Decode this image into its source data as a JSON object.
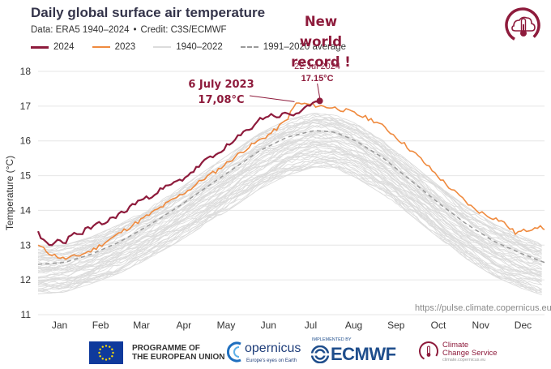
{
  "header": {
    "title": "Daily global surface air temperature",
    "subtitle_data": "Data: ERA5 1940–2024",
    "subtitle_sep": "•",
    "subtitle_credit": "Credit: C3S/ECMWF"
  },
  "legend": [
    {
      "label": "2024",
      "color": "#8e1b3c",
      "style": "solid"
    },
    {
      "label": "2023",
      "color": "#ef8a3e",
      "style": "solid"
    },
    {
      "label": "1940–2022",
      "color": "#dcdcdc",
      "style": "solid"
    },
    {
      "label": "1991–2020 average",
      "color": "#9a9a9a",
      "style": "dashed"
    }
  ],
  "callouts": {
    "record_line1": "New world",
    "record_line2": "record !",
    "july2024_date": "22 Jul 2024",
    "july2024_value": "17.15°C",
    "july2023_date": "6 July 2023",
    "july2023_value": "17,08°C"
  },
  "watermark": "https://pulse.climate.copernicus.eu",
  "footer": {
    "eu_line1": "PROGRAMME OF",
    "eu_line2": "THE EUROPEAN UNION",
    "copernicus": "opernicus",
    "copernicus_sub": "Europe's eyes on Earth",
    "ecmwf_small": "IMPLEMENTED BY",
    "ecmwf": "ECMWF",
    "c3s_line1": "Climate",
    "c3s_line2": "Change Service",
    "c3s_line3": "climate.copernicus.eu"
  },
  "chart_data": {
    "type": "line",
    "ylabel": "Temperature (°C)",
    "xlabel": "",
    "ylim": [
      11,
      18
    ],
    "yticks": [
      11,
      12,
      13,
      14,
      15,
      16,
      17,
      18
    ],
    "month_labels": [
      "Jan",
      "Feb",
      "Mar",
      "Apr",
      "May",
      "Jun",
      "Jul",
      "Aug",
      "Sep",
      "Oct",
      "Nov",
      "Dec"
    ],
    "x_unit": "day of year",
    "xlim": [
      1,
      366
    ],
    "grid": true,
    "series": [
      {
        "name": "2024",
        "color": "#8e1b3c",
        "x": [
          1,
          5,
          10,
          15,
          20,
          25,
          30,
          35,
          40,
          45,
          50,
          55,
          60,
          65,
          70,
          75,
          80,
          85,
          90,
          95,
          100,
          105,
          110,
          115,
          120,
          125,
          130,
          135,
          140,
          145,
          150,
          155,
          160,
          165,
          170,
          175,
          180,
          185,
          190,
          195,
          200,
          204
        ],
        "y": [
          13.4,
          13.1,
          12.95,
          13.15,
          13.05,
          13.35,
          13.25,
          13.45,
          13.5,
          13.6,
          13.65,
          13.8,
          13.9,
          14.0,
          14.2,
          14.3,
          14.35,
          14.5,
          14.6,
          14.7,
          14.8,
          14.9,
          15.05,
          15.2,
          15.4,
          15.5,
          15.6,
          15.8,
          15.9,
          16.1,
          16.25,
          16.4,
          16.6,
          16.7,
          16.75,
          16.7,
          16.8,
          16.75,
          16.85,
          16.95,
          17.05,
          17.15
        ]
      },
      {
        "name": "2023",
        "color": "#ef8a3e",
        "x": [
          1,
          10,
          20,
          30,
          40,
          50,
          60,
          70,
          80,
          90,
          100,
          110,
          120,
          130,
          140,
          150,
          160,
          170,
          180,
          187,
          195,
          205,
          215,
          225,
          235,
          245,
          255,
          265,
          275,
          285,
          295,
          305,
          315,
          325,
          335,
          345,
          355,
          360,
          366
        ],
        "y": [
          13.0,
          12.75,
          12.6,
          12.7,
          12.85,
          13.1,
          13.35,
          13.6,
          13.85,
          14.1,
          14.35,
          14.6,
          14.9,
          15.15,
          15.45,
          15.75,
          16.0,
          16.25,
          16.6,
          17.08,
          17.05,
          17.0,
          16.95,
          16.85,
          16.7,
          16.55,
          16.25,
          15.9,
          15.55,
          15.15,
          14.75,
          14.4,
          14.05,
          13.85,
          13.7,
          13.35,
          13.45,
          13.55,
          13.45
        ]
      },
      {
        "name": "1991–2020 average",
        "color": "#9a9a9a",
        "dashed": true,
        "x": [
          1,
          20,
          40,
          60,
          80,
          100,
          120,
          140,
          160,
          180,
          200,
          215,
          230,
          250,
          270,
          290,
          310,
          330,
          350,
          366
        ],
        "y": [
          12.45,
          12.5,
          12.75,
          13.1,
          13.55,
          14.05,
          14.6,
          15.15,
          15.7,
          16.1,
          16.3,
          16.25,
          16.0,
          15.5,
          14.85,
          14.2,
          13.6,
          13.1,
          12.75,
          12.5
        ]
      }
    ],
    "background_range": {
      "name": "1940–2022",
      "color": "#dcdcdc",
      "x": [
        1,
        20,
        40,
        60,
        80,
        100,
        120,
        140,
        160,
        180,
        200,
        215,
        230,
        250,
        270,
        290,
        310,
        330,
        350,
        366
      ],
      "low": [
        11.6,
        11.65,
        11.9,
        12.2,
        12.6,
        13.05,
        13.55,
        14.05,
        14.6,
        15.0,
        15.25,
        15.2,
        14.95,
        14.45,
        13.85,
        13.2,
        12.6,
        12.1,
        11.75,
        11.55
      ],
      "high": [
        12.95,
        13.0,
        13.25,
        13.6,
        14.05,
        14.55,
        15.1,
        15.65,
        16.2,
        16.6,
        16.8,
        16.75,
        16.5,
        16.0,
        15.35,
        14.7,
        14.1,
        13.6,
        13.25,
        13.0
      ]
    },
    "annotations": [
      {
        "text": "22 Jul 2024 17.15°C",
        "x": 204,
        "y": 17.15
      },
      {
        "text": "6 July 2023 17,08°C",
        "x": 187,
        "y": 17.08
      }
    ]
  }
}
